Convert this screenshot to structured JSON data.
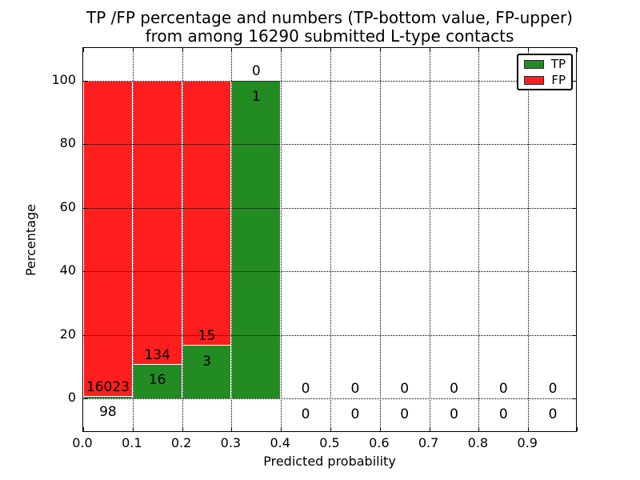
{
  "title": {
    "line1": "TP /FP percentage and numbers (TP-bottom value, FP-upper)",
    "line2": "from among 16290 submitted L-type contacts"
  },
  "axes": {
    "xlabel": "Predicted probability",
    "ylabel": "Percentage",
    "x_tick_labels": [
      "0.0",
      "0.1",
      "0.2",
      "0.3",
      "0.4",
      "0.5",
      "0.6",
      "0.7",
      "0.8",
      "0.9"
    ],
    "y_tick_values": [
      0,
      20,
      40,
      60,
      80,
      100
    ]
  },
  "legend": {
    "items": [
      {
        "label": "TP",
        "color": "#228B22"
      },
      {
        "label": "FP",
        "color": "#FF1E1E"
      }
    ]
  },
  "colors": {
    "tp": "#228B22",
    "fp": "#FF1E1E",
    "bar_edge": "#FFFFFF",
    "axis": "#000000",
    "background": "#FFFFFF"
  },
  "chart_data": {
    "type": "bar",
    "subtype": "stacked-percentage",
    "title": "TP /FP percentage and numbers (TP-bottom value, FP-upper)\nfrom among 16290 submitted L-type contacts",
    "xlabel": "Predicted probability",
    "ylabel": "Percentage",
    "xlim": [
      0.0,
      1.0
    ],
    "ylim": [
      -10,
      110
    ],
    "grid": true,
    "grid_style": "dotted",
    "legend_position": "upper right",
    "total_submitted": 16290,
    "x_bins": [
      [
        0.0,
        0.1
      ],
      [
        0.1,
        0.2
      ],
      [
        0.2,
        0.3
      ],
      [
        0.3,
        0.4
      ],
      [
        0.4,
        0.5
      ],
      [
        0.5,
        0.6
      ],
      [
        0.6,
        0.7
      ],
      [
        0.7,
        0.8
      ],
      [
        0.8,
        0.9
      ],
      [
        0.9,
        1.0
      ]
    ],
    "series": [
      {
        "name": "TP",
        "color": "#228B22",
        "counts": [
          98,
          16,
          3,
          1,
          0,
          0,
          0,
          0,
          0,
          0
        ],
        "pct": [
          0.61,
          10.67,
          16.67,
          100,
          0,
          0,
          0,
          0,
          0,
          0
        ]
      },
      {
        "name": "FP",
        "color": "#FF1E1E",
        "counts": [
          16023,
          134,
          15,
          0,
          0,
          0,
          0,
          0,
          0,
          0
        ],
        "pct": [
          99.39,
          89.33,
          83.33,
          0,
          0,
          0,
          0,
          0,
          0,
          0
        ]
      }
    ]
  }
}
